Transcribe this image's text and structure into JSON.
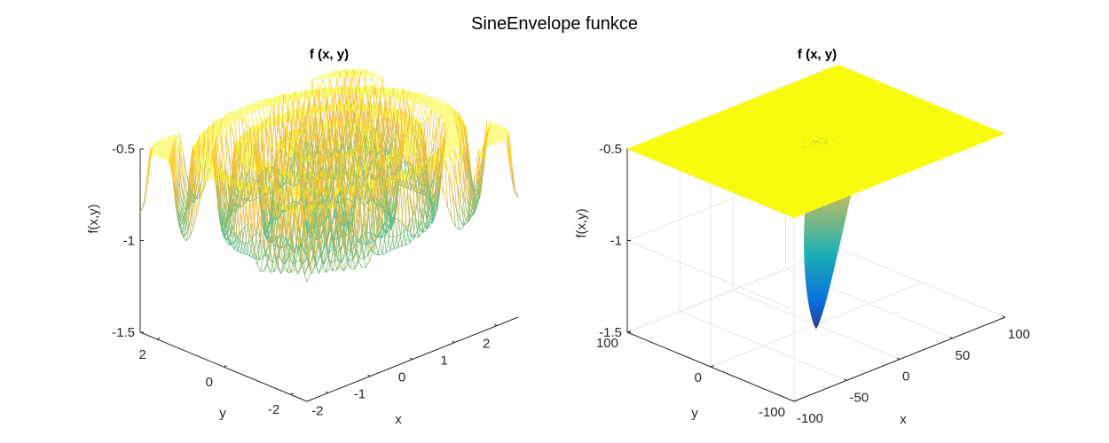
{
  "figure": {
    "title": "SineEnvelope funkce"
  },
  "chart_data": [
    {
      "type": "surface-mesh",
      "title": "f (x, y)",
      "xlabel": "x",
      "ylabel": "y",
      "zlabel": "f(x,y)",
      "xlim": [
        -2.5,
        2.5
      ],
      "ylim": [
        -2.5,
        2.5
      ],
      "zlim": [
        -1.5,
        -0.5
      ],
      "xticks": [
        -2,
        -1,
        0,
        1,
        2
      ],
      "xtick_labels": [
        "-2",
        "-1",
        "0",
        "1",
        "2"
      ],
      "yticks": [
        -2,
        0,
        2
      ],
      "ytick_labels": [
        "-2",
        "0",
        "2"
      ],
      "zticks": [
        -1.5,
        -1,
        -0.5
      ],
      "ztick_labels": [
        "-1.5",
        "-1",
        "-0.5"
      ],
      "grid_n": 55,
      "colormap": "parula",
      "view": "azimuth -37.5, elevation 30",
      "function": "-0.5 - (sin^2(sqrt(x^2+y^2)) - 0.5) / (0.001*(x^2+y^2) + 1)^2",
      "grid": false
    },
    {
      "type": "surface",
      "title": "f (x, y)",
      "xlabel": "x",
      "ylabel": "y",
      "zlabel": "f(x,y)",
      "xlim": [
        -100,
        100
      ],
      "ylim": [
        -100,
        100
      ],
      "zlim": [
        -1.5,
        -0.5
      ],
      "xticks": [
        -100,
        -50,
        0,
        50,
        100
      ],
      "xtick_labels": [
        "-100",
        "-50",
        "0",
        "50",
        "100"
      ],
      "yticks": [
        -100,
        0,
        100
      ],
      "ytick_labels": [
        "-100",
        "0",
        "100"
      ],
      "zticks": [
        -1.5,
        -1,
        -0.5
      ],
      "ztick_labels": [
        "-1.5",
        "-1",
        "-0.5"
      ],
      "colormap": "parula",
      "view": "azimuth -37.5, elevation 30",
      "function": "well at the origin reaching -1.5, plateau at -0.5",
      "grid": true
    }
  ],
  "colors": {
    "axis": "#262626",
    "grid": "#e6e6e6",
    "plateau": "#f9fb0e"
  }
}
